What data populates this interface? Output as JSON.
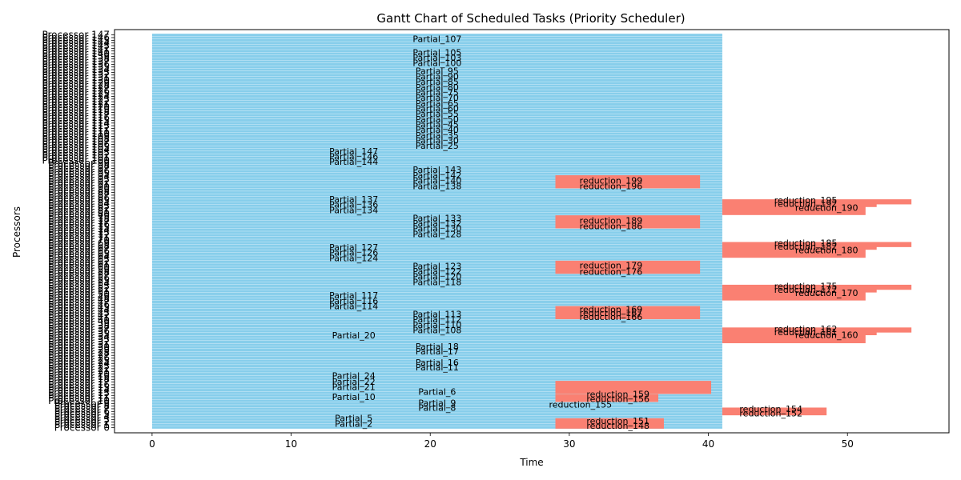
{
  "chart_data": {
    "type": "bar",
    "orientation": "horizontal",
    "title": "Gantt Chart of Scheduled Tasks (Priority Scheduler)",
    "xlabel": "Time",
    "ylabel": "Processors",
    "xlim": [
      -2.7,
      57.3
    ],
    "ylim": [
      -2,
      149
    ],
    "x_ticks": [
      0,
      10,
      20,
      30,
      40,
      50
    ],
    "grid": false,
    "legend": null,
    "colors": {
      "partial": "#87ceeb",
      "reduction": "#fa8072"
    },
    "y_tick_labels_visible": [
      "Processor 0",
      "Processor 1",
      "Processor 2",
      "Processor 3",
      "Processor 4",
      "Processor 5",
      "Processor 6",
      "Processor 7",
      "Processor 8",
      "Processor 9",
      "Processor 10",
      "Processor 11",
      "Processor 12",
      "Processor 13",
      "Processor 14",
      "Processor 15",
      "Processor 16",
      "Processor 17",
      "Processor 18",
      "Processor 19",
      "Processor 20",
      "Processor 21",
      "Processor 22",
      "Processor 23",
      "Processor 24",
      "Processor 25",
      "Processor 26",
      "Processor 27",
      "Processor 28",
      "Processor 29",
      "Processor 30",
      "Processor 31",
      "Processor 32",
      "Processor 33",
      "Processor 34",
      "Processor 35",
      "Processor 36",
      "Processor 37",
      "Processor 38",
      "Processor 39",
      "Processor 40",
      "Processor 41",
      "Processor 42",
      "Processor 43",
      "Processor 44",
      "Processor 45",
      "Processor 46",
      "Processor 47",
      "Processor 48",
      "Processor 49",
      "Processor 50",
      "Processor 51",
      "Processor 52",
      "Processor 53",
      "Processor 54",
      "Processor 55",
      "Processor 56",
      "Processor 57",
      "Processor 58",
      "Processor 59",
      "Processor 60",
      "Processor 61",
      "Processor 62",
      "Processor 63",
      "Processor 64",
      "Processor 65",
      "Processor 66",
      "Processor 67",
      "Processor 68",
      "Processor 69",
      "Processor 70",
      "Processor 71",
      "Processor 72",
      "Processor 73",
      "Processor 74",
      "Processor 75",
      "Processor 76",
      "Processor 77",
      "Processor 78",
      "Processor 79",
      "Processor 80",
      "Processor 81",
      "Processor 82",
      "Processor 83",
      "Processor 84",
      "Processor 85",
      "Processor 86",
      "Processor 87",
      "Processor 88",
      "Processor 89",
      "Processor 90",
      "Processor 91",
      "Processor 92",
      "Processor 93",
      "Processor 94",
      "Processor 95",
      "Processor 96",
      "Processor 97",
      "Processor 98",
      "Processor 99",
      "Processor 100",
      "Processor 101",
      "Processor 102",
      "Processor 103",
      "Processor 104",
      "Processor 105",
      "Processor 106",
      "Processor 107",
      "Processor 108",
      "Processor 109",
      "Processor 110",
      "Processor 111",
      "Processor 112",
      "Processor 113",
      "Processor 114",
      "Processor 115",
      "Processor 116",
      "Processor 117",
      "Processor 118",
      "Processor 119",
      "Processor 120",
      "Processor 121",
      "Processor 122",
      "Processor 123",
      "Processor 124",
      "Processor 125",
      "Processor 126",
      "Processor 127",
      "Processor 128",
      "Processor 129",
      "Processor 130",
      "Processor 131",
      "Processor 132",
      "Processor 133",
      "Processor 134",
      "Processor 135",
      "Processor 136",
      "Processor 137",
      "Processor 138",
      "Processor 139",
      "Processor 140",
      "Processor 141",
      "Processor 142",
      "Processor 143",
      "Processor 144",
      "Processor 145",
      "Processor 146",
      "Processor 147"
    ],
    "partial_blocks": [
      {
        "row_start": 0,
        "row_end": 2,
        "start": 0,
        "end": 41
      },
      {
        "row_start": 3,
        "row_end": 147,
        "start": 0,
        "end": 41
      }
    ],
    "reduction_blocks": [
      {
        "row_start": 0,
        "row_end": 3,
        "start": 29,
        "end": 36.8
      },
      {
        "row_start": 5,
        "row_end": 7,
        "start": 41,
        "end": 48.5
      },
      {
        "row_start": 10,
        "row_end": 12,
        "start": 29,
        "end": 36.4
      },
      {
        "row_start": 13,
        "row_end": 17,
        "start": 29,
        "end": 40.2
      },
      {
        "row_start": 32,
        "row_end": 35,
        "start": 41,
        "end": 51.3
      },
      {
        "row_start": 35,
        "row_end": 36,
        "start": 41,
        "end": 52.1
      },
      {
        "row_start": 36,
        "row_end": 37,
        "start": 41,
        "end": 54.6
      },
      {
        "row_start": 41,
        "row_end": 45,
        "start": 29,
        "end": 39.4
      },
      {
        "row_start": 48,
        "row_end": 51,
        "start": 41,
        "end": 51.3
      },
      {
        "row_start": 51,
        "row_end": 52,
        "start": 41,
        "end": 52.1
      },
      {
        "row_start": 52,
        "row_end": 53,
        "start": 41,
        "end": 54.6
      },
      {
        "row_start": 58,
        "row_end": 62,
        "start": 29,
        "end": 39.4
      },
      {
        "row_start": 64,
        "row_end": 67,
        "start": 41,
        "end": 51.3
      },
      {
        "row_start": 67,
        "row_end": 68,
        "start": 41,
        "end": 52.1
      },
      {
        "row_start": 68,
        "row_end": 69,
        "start": 41,
        "end": 54.6
      },
      {
        "row_start": 75,
        "row_end": 79,
        "start": 29,
        "end": 39.4
      },
      {
        "row_start": 80,
        "row_end": 83,
        "start": 41,
        "end": 51.3
      },
      {
        "row_start": 83,
        "row_end": 84,
        "start": 41,
        "end": 52.1
      },
      {
        "row_start": 84,
        "row_end": 85,
        "start": 41,
        "end": 54.6
      },
      {
        "row_start": 90,
        "row_end": 94,
        "start": 29,
        "end": 39.4
      }
    ],
    "task_labels": [
      {
        "text": "Partial_2",
        "x": 14.5,
        "y": 1.5
      },
      {
        "text": "Partial_5",
        "x": 14.5,
        "y": 3.5
      },
      {
        "text": "Partial_8",
        "x": 20.5,
        "y": 7.5
      },
      {
        "text": "Partial_9",
        "x": 20.5,
        "y": 9.2
      },
      {
        "text": "Partial_6",
        "x": 20.5,
        "y": 13.5
      },
      {
        "text": "Partial_10",
        "x": 14.5,
        "y": 11.5
      },
      {
        "text": "Partial_21",
        "x": 14.5,
        "y": 15.3
      },
      {
        "text": "Partial_22",
        "x": 14.5,
        "y": 17.2
      },
      {
        "text": "Partial_24",
        "x": 14.5,
        "y": 19.4
      },
      {
        "text": "Partial_11",
        "x": 20.5,
        "y": 22.5
      },
      {
        "text": "Partial_16",
        "x": 20.5,
        "y": 24.4
      },
      {
        "text": "Partial_17",
        "x": 20.5,
        "y": 28.5
      },
      {
        "text": "Partial_18",
        "x": 20.5,
        "y": 30.3
      },
      {
        "text": "Partial_20",
        "x": 14.5,
        "y": 34.5
      },
      {
        "text": "Partial_108",
        "x": 20.5,
        "y": 36.5
      },
      {
        "text": "Partial_110",
        "x": 20.5,
        "y": 38.5
      },
      {
        "text": "Partial_112",
        "x": 20.5,
        "y": 40.5
      },
      {
        "text": "Partial_113",
        "x": 20.5,
        "y": 42.5
      },
      {
        "text": "Partial_114",
        "x": 14.5,
        "y": 45.5
      },
      {
        "text": "Partial_116",
        "x": 14.5,
        "y": 47.5
      },
      {
        "text": "Partial_117",
        "x": 14.5,
        "y": 49.5
      },
      {
        "text": "Partial_118",
        "x": 20.5,
        "y": 54.5
      },
      {
        "text": "Partial_120",
        "x": 20.5,
        "y": 56.5
      },
      {
        "text": "Partial_122",
        "x": 20.5,
        "y": 58.5
      },
      {
        "text": "Partial_123",
        "x": 20.5,
        "y": 60.5
      },
      {
        "text": "Partial_124",
        "x": 14.5,
        "y": 63.5
      },
      {
        "text": "Partial_126",
        "x": 14.5,
        "y": 65.5
      },
      {
        "text": "Partial_127",
        "x": 14.5,
        "y": 67.5
      },
      {
        "text": "Partial_128",
        "x": 20.5,
        "y": 72.5
      },
      {
        "text": "Partial_130",
        "x": 20.5,
        "y": 74.5
      },
      {
        "text": "Partial_132",
        "x": 20.5,
        "y": 76.5
      },
      {
        "text": "Partial_133",
        "x": 20.5,
        "y": 78.5
      },
      {
        "text": "Partial_134",
        "x": 14.5,
        "y": 81.5
      },
      {
        "text": "Partial_136",
        "x": 14.5,
        "y": 83.5
      },
      {
        "text": "Partial_137",
        "x": 14.5,
        "y": 85.5
      },
      {
        "text": "Partial_138",
        "x": 20.5,
        "y": 90.5
      },
      {
        "text": "Partial_140",
        "x": 20.5,
        "y": 92.5
      },
      {
        "text": "Partial_142",
        "x": 20.5,
        "y": 94.5
      },
      {
        "text": "Partial_143",
        "x": 20.5,
        "y": 96.5
      },
      {
        "text": "Partial_144",
        "x": 14.5,
        "y": 99.5
      },
      {
        "text": "Partial_146",
        "x": 14.5,
        "y": 101.5
      },
      {
        "text": "Partial_147",
        "x": 14.5,
        "y": 103.5
      },
      {
        "text": "Partial_25",
        "x": 20.5,
        "y": 105.5
      },
      {
        "text": "Partial_30",
        "x": 20.5,
        "y": 107.5
      },
      {
        "text": "Partial_35",
        "x": 20.5,
        "y": 109.5
      },
      {
        "text": "Partial_40",
        "x": 20.5,
        "y": 111.5
      },
      {
        "text": "Partial_45",
        "x": 20.5,
        "y": 113.5
      },
      {
        "text": "Partial_50",
        "x": 20.5,
        "y": 115.5
      },
      {
        "text": "Partial_55",
        "x": 20.5,
        "y": 117.5
      },
      {
        "text": "Partial_60",
        "x": 20.5,
        "y": 119.5
      },
      {
        "text": "Partial_65",
        "x": 20.5,
        "y": 121.5
      },
      {
        "text": "Partial_70",
        "x": 20.5,
        "y": 123.5
      },
      {
        "text": "Partial_75",
        "x": 20.5,
        "y": 125.5
      },
      {
        "text": "Partial_80",
        "x": 20.5,
        "y": 127.5
      },
      {
        "text": "Partial_85",
        "x": 20.5,
        "y": 129.5
      },
      {
        "text": "Partial_90",
        "x": 20.5,
        "y": 131.5
      },
      {
        "text": "Partial_95",
        "x": 20.5,
        "y": 133.5
      },
      {
        "text": "Partial_100",
        "x": 20.5,
        "y": 136.5
      },
      {
        "text": "Partial_103",
        "x": 20.5,
        "y": 138.5
      },
      {
        "text": "Partial_105",
        "x": 20.5,
        "y": 140.5
      },
      {
        "text": "Partial_107",
        "x": 20.5,
        "y": 145.5
      },
      {
        "text": "reduction_148",
        "x": 33.5,
        "y": 0.7
      },
      {
        "text": "reduction_151",
        "x": 33.5,
        "y": 2.5
      },
      {
        "text": "reduction_152",
        "x": 44.5,
        "y": 5.4
      },
      {
        "text": "reduction_154",
        "x": 44.5,
        "y": 7.0
      },
      {
        "text": "reduction_155",
        "x": 30.8,
        "y": 8.7
      },
      {
        "text": "reduction_156",
        "x": 33.5,
        "y": 10.8
      },
      {
        "text": "reduction_159",
        "x": 33.5,
        "y": 12.6
      },
      {
        "text": "reduction_160",
        "x": 48.5,
        "y": 34.7
      },
      {
        "text": "reduction_161",
        "x": 47.0,
        "y": 35.8
      },
      {
        "text": "reduction_162",
        "x": 47.0,
        "y": 37.0
      },
      {
        "text": "reduction_170",
        "x": 48.5,
        "y": 50.4
      },
      {
        "text": "reduction_172",
        "x": 47.0,
        "y": 51.6
      },
      {
        "text": "reduction_175",
        "x": 47.0,
        "y": 53.0
      },
      {
        "text": "reduction_176",
        "x": 33.0,
        "y": 58.3
      },
      {
        "text": "reduction_179",
        "x": 33.0,
        "y": 60.8
      },
      {
        "text": "reduction_180",
        "x": 48.5,
        "y": 66.4
      },
      {
        "text": "reduction_182",
        "x": 47.0,
        "y": 67.8
      },
      {
        "text": "reduction_185",
        "x": 47.0,
        "y": 69.2
      },
      {
        "text": "reduction_186",
        "x": 33.0,
        "y": 75.5
      },
      {
        "text": "reduction_189",
        "x": 33.0,
        "y": 77.5
      },
      {
        "text": "reduction_190",
        "x": 48.5,
        "y": 82.4
      },
      {
        "text": "reduction_192",
        "x": 47.0,
        "y": 83.8
      },
      {
        "text": "reduction_195",
        "x": 47.0,
        "y": 85.2
      },
      {
        "text": "reduction_196",
        "x": 33.0,
        "y": 90.5
      },
      {
        "text": "reduction_199",
        "x": 33.0,
        "y": 92.5
      },
      {
        "text": "reduction_166",
        "x": 33.0,
        "y": 41.5
      },
      {
        "text": "reduction_167",
        "x": 33.0,
        "y": 42.9
      },
      {
        "text": "reduction_169",
        "x": 33.0,
        "y": 44.3
      }
    ]
  }
}
